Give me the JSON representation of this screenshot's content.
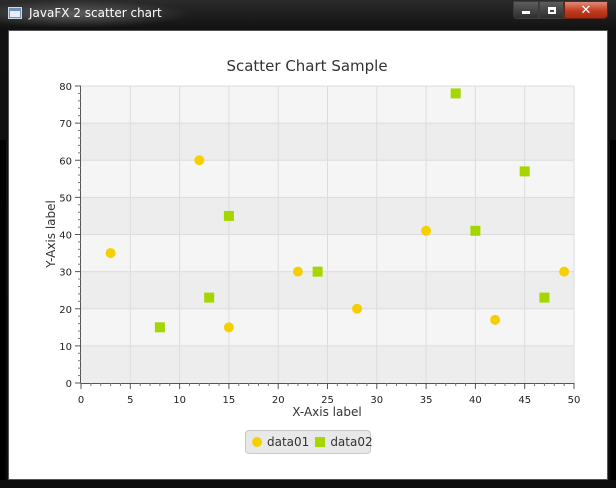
{
  "window": {
    "title": "JavaFX 2 scatter chart",
    "icon": "java-window-icon",
    "controls": [
      "minimize-icon",
      "maximize-icon",
      "close-icon"
    ]
  },
  "chart_data": {
    "type": "scatter",
    "title": "Scatter Chart Sample",
    "xlabel": "X-Axis label",
    "ylabel": "Y-Axis label",
    "xlim": [
      0,
      50
    ],
    "ylim": [
      0,
      80
    ],
    "xticks": [
      0,
      5,
      10,
      15,
      20,
      25,
      30,
      35,
      40,
      45,
      50
    ],
    "yticks": [
      0,
      10,
      20,
      30,
      40,
      50,
      60,
      70,
      80
    ],
    "grid": true,
    "legend_position": "bottom",
    "series": [
      {
        "name": "data01",
        "marker": "circle",
        "color": "#f5d000",
        "points": [
          [
            3,
            35
          ],
          [
            12,
            60
          ],
          [
            15,
            15
          ],
          [
            22,
            30
          ],
          [
            28,
            20
          ],
          [
            35,
            41
          ],
          [
            42,
            17
          ],
          [
            49,
            30
          ]
        ]
      },
      {
        "name": "data02",
        "marker": "square",
        "color": "#a6d600",
        "points": [
          [
            8,
            15
          ],
          [
            13,
            23
          ],
          [
            15,
            45
          ],
          [
            24,
            30
          ],
          [
            38,
            78
          ],
          [
            40,
            41
          ],
          [
            45,
            57
          ],
          [
            47,
            23
          ]
        ]
      }
    ]
  }
}
